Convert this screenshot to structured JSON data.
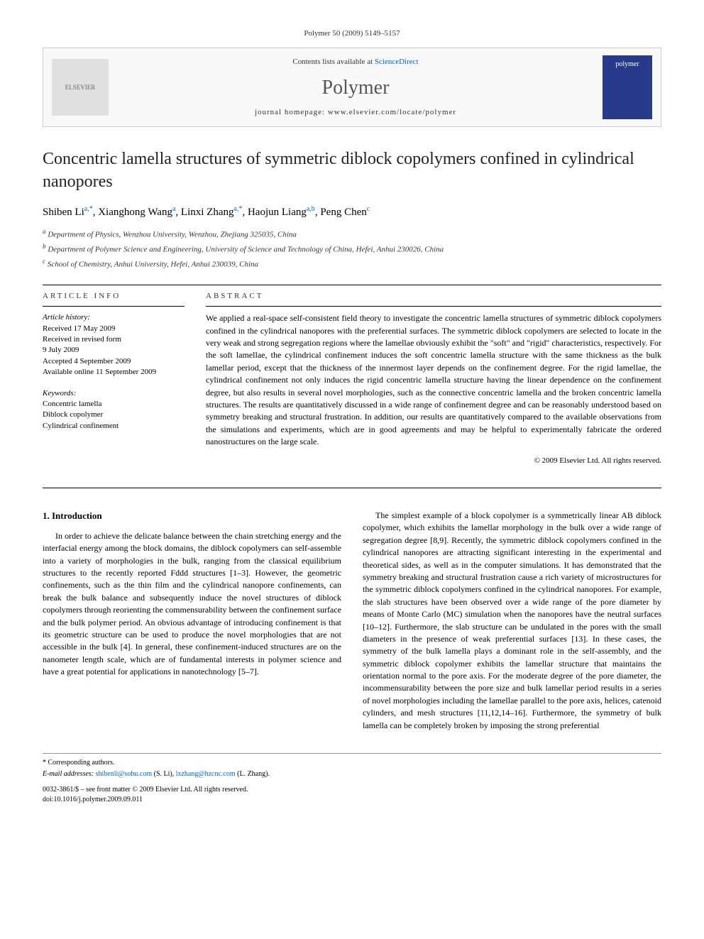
{
  "header": {
    "citation": "Polymer 50 (2009) 5149–5157"
  },
  "banner": {
    "publisher_logo": "ELSEVIER",
    "contents_text": "Contents lists available at",
    "contents_link": "ScienceDirect",
    "journal_name": "Polymer",
    "homepage_label": "journal homepage:",
    "homepage_url": "www.elsevier.com/locate/polymer",
    "cover_label": "polymer"
  },
  "title": "Concentric lamella structures of symmetric diblock copolymers confined in cylindrical nanopores",
  "authors": [
    {
      "name": "Shiben Li",
      "marks": "a,*"
    },
    {
      "name": "Xianghong Wang",
      "marks": "a"
    },
    {
      "name": "Linxi Zhang",
      "marks": "a,*"
    },
    {
      "name": "Haojun Liang",
      "marks": "a,b"
    },
    {
      "name": "Peng Chen",
      "marks": "c"
    }
  ],
  "affiliations": [
    {
      "mark": "a",
      "text": "Department of Physics, Wenzhou University, Wenzhou, Zhejiang 325035, China"
    },
    {
      "mark": "b",
      "text": "Department of Polymer Science and Engineering, University of Science and Technology of China, Hefei, Anhui 230026, China"
    },
    {
      "mark": "c",
      "text": "School of Chemistry, Anhui University, Hefei, Anhui 230039, China"
    }
  ],
  "article_info": {
    "label": "ARTICLE INFO",
    "history_label": "Article history:",
    "history": [
      "Received 17 May 2009",
      "Received in revised form",
      "9 July 2009",
      "Accepted 4 September 2009",
      "Available online 11 September 2009"
    ],
    "keywords_label": "Keywords:",
    "keywords": [
      "Concentric lamella",
      "Diblock copolymer",
      "Cylindrical confinement"
    ]
  },
  "abstract": {
    "label": "ABSTRACT",
    "text": "We applied a real-space self-consistent field theory to investigate the concentric lamella structures of symmetric diblock copolymers confined in the cylindrical nanopores with the preferential surfaces. The symmetric diblock copolymers are selected to locate in the very weak and strong segregation regions where the lamellae obviously exhibit the \"soft\" and \"rigid\" characteristics, respectively. For the soft lamellae, the cylindrical confinement induces the soft concentric lamella structure with the same thickness as the bulk lamellar period, except that the thickness of the innermost layer depends on the confinement degree. For the rigid lamellae, the cylindrical confinement not only induces the rigid concentric lamella structure having the linear dependence on the confinement degree, but also results in several novel morphologies, such as the connective concentric lamella and the broken concentric lamella structures. The results are quantitatively discussed in a wide range of confinement degree and can be reasonably understood based on symmetry breaking and structural frustration. In addition, our results are quantitatively compared to the available observations from the simulations and experiments, which are in good agreements and may be helpful to experimentally fabricate the ordered nanostructures on the large scale.",
    "copyright": "© 2009 Elsevier Ltd. All rights reserved."
  },
  "body": {
    "section_heading": "1. Introduction",
    "col1_para": "In order to achieve the delicate balance between the chain stretching energy and the interfacial energy among the block domains, the diblock copolymers can self-assemble into a variety of morphologies in the bulk, ranging from the classical equilibrium structures to the recently reported Fddd structures [1–3]. However, the geometric confinements, such as the thin film and the cylindrical nanopore confinements, can break the bulk balance and subsequently induce the novel structures of diblock copolymers through reorienting the commensurability between the confinement surface and the bulk polymer period. An obvious advantage of introducing confinement is that its geometric structure can be used to produce the novel morphologies that are not accessible in the bulk [4]. In general, these confinement-induced structures are on the nanometer length scale, which are of fundamental interests in polymer science and have a great potential for applications in nanotechnology [5–7].",
    "col2_para": "The simplest example of a block copolymer is a symmetrically linear AB diblock copolymer, which exhibits the lamellar morphology in the bulk over a wide range of segregation degree [8,9]. Recently, the symmetric diblock copolymers confined in the cylindrical nanopores are attracting significant interesting in the experimental and theoretical sides, as well as in the computer simulations. It has demonstrated that the symmetry breaking and structural frustration cause a rich variety of microstructures for the symmetric diblock copolymers confined in the cylindrical nanopores. For example, the slab structures have been observed over a wide range of the pore diameter by means of Monte Carlo (MC) simulation when the nanopores have the neutral surfaces [10–12]. Furthermore, the slab structure can be undulated in the pores with the small diameters in the presence of weak preferential surfaces [13]. In these cases, the symmetry of the bulk lamella plays a dominant role in the self-assembly, and the symmetric diblock copolymer exhibits the lamellar structure that maintains the orientation normal to the pore axis. For the moderate degree of the pore diameter, the incommensurability between the pore size and bulk lamellar period results in a series of novel morphologies including the lamellae parallel to the pore axis, helices, catenoid cylinders, and mesh structures [11,12,14–16]. Furthermore, the symmetry of bulk lamella can be completely broken by imposing the strong preferential"
  },
  "footer": {
    "corr_label": "* Corresponding authors.",
    "email_label": "E-mail addresses:",
    "emails": [
      {
        "addr": "shibenli@sohu.com",
        "who": "(S. Li)"
      },
      {
        "addr": "lxzhang@hzcnc.com",
        "who": "(L. Zhang)"
      }
    ],
    "issn": "0032-3861/$ – see front matter © 2009 Elsevier Ltd. All rights reserved.",
    "doi": "doi:10.1016/j.polymer.2009.09.011"
  },
  "colors": {
    "link": "#0066cc",
    "text": "#000000",
    "muted": "#333333",
    "cover_bg": "#2a3a8a"
  }
}
